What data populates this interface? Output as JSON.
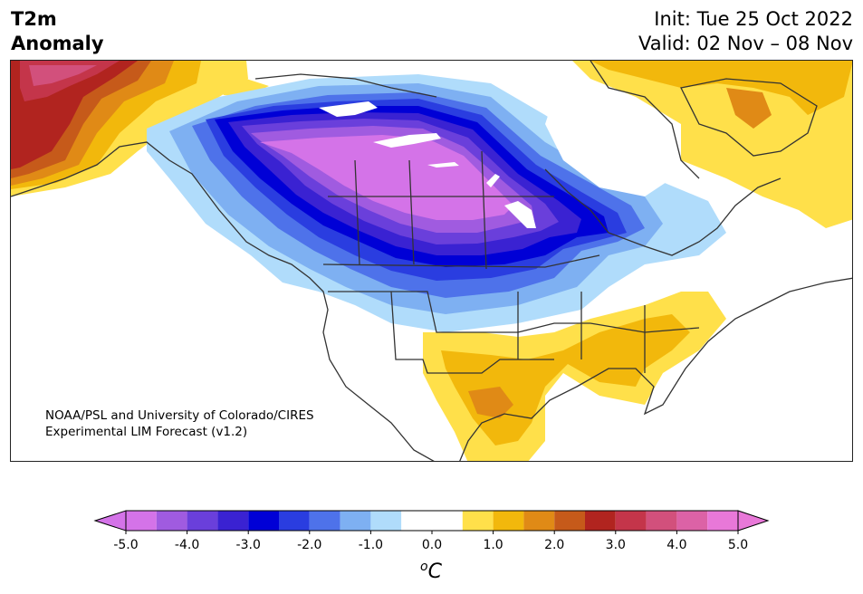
{
  "header": {
    "title_line1": "T2m",
    "title_line2": "Anomaly",
    "init_text": "Init: Tue 25 Oct 2022",
    "valid_text": "Valid: 02 Nov – 08 Nov"
  },
  "credit": {
    "line1": "NOAA/PSL and University of Colorado/CIRES",
    "line2": "Experimental LIM Forecast (v1.2)"
  },
  "colorbar": {
    "unit": "°C",
    "min_extend_color": "#d473e8",
    "max_extend_color": "#e878d8",
    "bins": [
      {
        "from": -5.0,
        "to": -4.5,
        "color": "#d473e8"
      },
      {
        "from": -4.5,
        "to": -4.0,
        "color": "#a05be0"
      },
      {
        "from": -4.0,
        "to": -3.5,
        "color": "#6a3fdb"
      },
      {
        "from": -3.5,
        "to": -3.0,
        "color": "#3a22d2"
      },
      {
        "from": -3.0,
        "to": -2.5,
        "color": "#0000d6"
      },
      {
        "from": -2.5,
        "to": -2.0,
        "color": "#2a3de0"
      },
      {
        "from": -2.0,
        "to": -1.5,
        "color": "#4e72ea"
      },
      {
        "from": -1.5,
        "to": -1.0,
        "color": "#7eb0f2"
      },
      {
        "from": -1.0,
        "to": -0.5,
        "color": "#b0dcfb"
      },
      {
        "from": -0.5,
        "to": 0.5,
        "color": "#ffffff"
      },
      {
        "from": 0.5,
        "to": 1.0,
        "color": "#ffe04a"
      },
      {
        "from": 1.0,
        "to": 1.5,
        "color": "#f2b80c"
      },
      {
        "from": 1.5,
        "to": 2.0,
        "color": "#e08a16"
      },
      {
        "from": 2.0,
        "to": 2.5,
        "color": "#c65a1a"
      },
      {
        "from": 2.5,
        "to": 3.0,
        "color": "#b1241f"
      },
      {
        "from": 3.0,
        "to": 3.5,
        "color": "#c4354a"
      },
      {
        "from": 3.5,
        "to": 4.0,
        "color": "#d2507c"
      },
      {
        "from": 4.0,
        "to": 4.5,
        "color": "#dc62a6"
      },
      {
        "from": 4.5,
        "to": 5.0,
        "color": "#e878d8"
      }
    ],
    "tick_labels": [
      "-5.0",
      "-4.0",
      "-3.0",
      "-2.0",
      "-1.0",
      "0.0",
      "1.0",
      "2.0",
      "3.0",
      "4.0",
      "5.0"
    ]
  },
  "colors": {
    "cold_core": "#d473e8",
    "warm_core": "#b1241f",
    "coastline": "#333333"
  }
}
